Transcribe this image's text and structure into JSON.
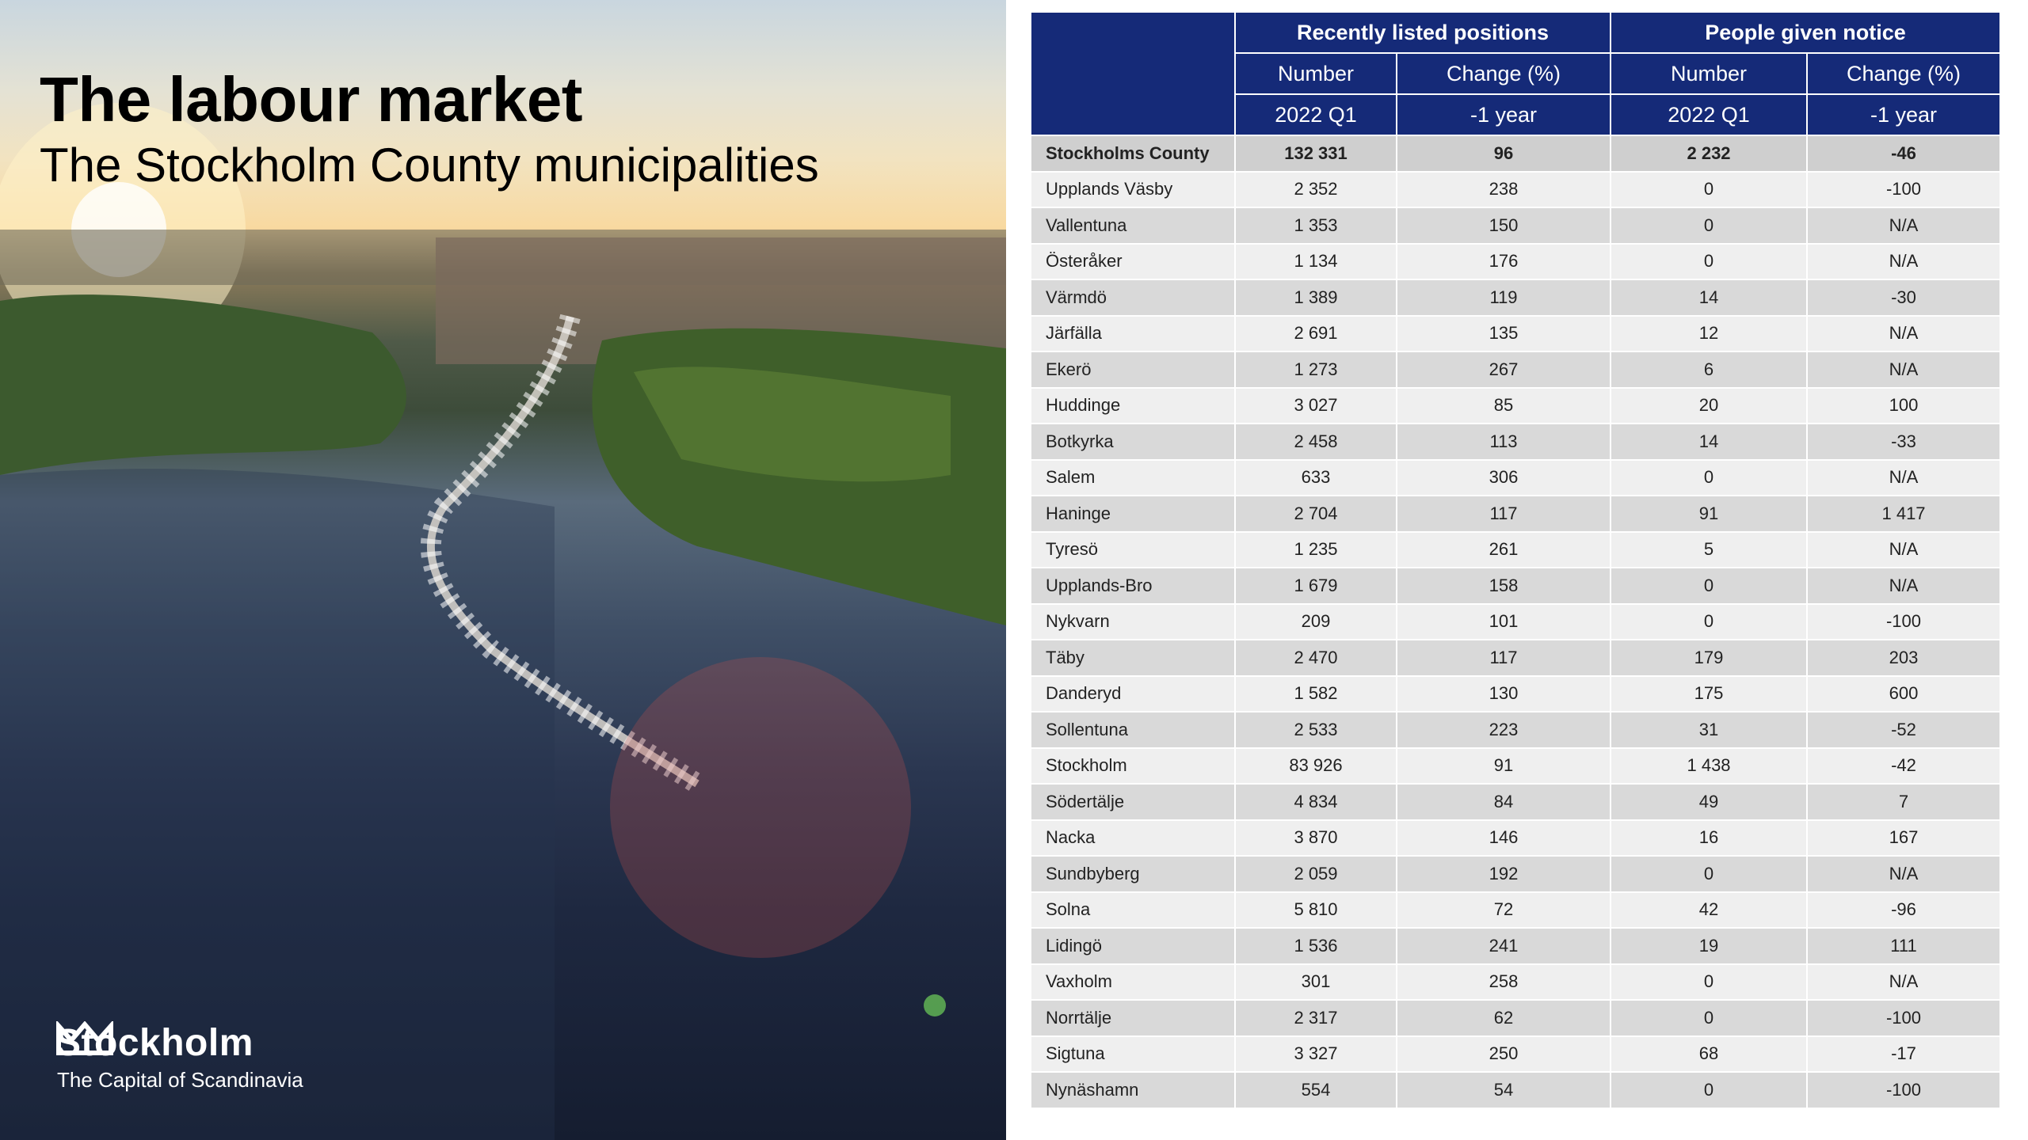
{
  "title": "The labour market",
  "subtitle": "The Stockholm County municipalities",
  "logo": {
    "wordmark": "Stockholm",
    "tagline": "The Capital of Scandinavia",
    "icon": "crown-icon"
  },
  "table": {
    "groups": [
      "Recently listed positions",
      "People given notice"
    ],
    "subheaders": [
      [
        "Number",
        "Change (%)",
        "Number",
        "Change (%)"
      ],
      [
        "2022 Q1",
        "-1 year",
        "2022 Q1",
        "-1 year"
      ]
    ],
    "total": [
      "Stockholms County",
      "132 331",
      "96",
      "2 232",
      "-46"
    ],
    "rows": [
      [
        "Upplands Väsby",
        "2 352",
        "238",
        "0",
        "-100"
      ],
      [
        "Vallentuna",
        "1 353",
        "150",
        "0",
        "N/A"
      ],
      [
        "Österåker",
        "1 134",
        "176",
        "0",
        "N/A"
      ],
      [
        "Värmdö",
        "1 389",
        "119",
        "14",
        "-30"
      ],
      [
        "Järfälla",
        "2 691",
        "135",
        "12",
        "N/A"
      ],
      [
        "Ekerö",
        "1 273",
        "267",
        "6",
        "N/A"
      ],
      [
        "Huddinge",
        "3 027",
        "85",
        "20",
        "100"
      ],
      [
        "Botkyrka",
        "2 458",
        "113",
        "14",
        "-33"
      ],
      [
        "Salem",
        "633",
        "306",
        "0",
        "N/A"
      ],
      [
        "Haninge",
        "2 704",
        "117",
        "91",
        "1 417"
      ],
      [
        "Tyresö",
        "1 235",
        "261",
        "5",
        "N/A"
      ],
      [
        "Upplands-Bro",
        "1 679",
        "158",
        "0",
        "N/A"
      ],
      [
        "Nykvarn",
        "209",
        "101",
        "0",
        "-100"
      ],
      [
        "Täby",
        "2 470",
        "117",
        "179",
        "203"
      ],
      [
        "Danderyd",
        "1 582",
        "130",
        "175",
        "600"
      ],
      [
        "Sollentuna",
        "2 533",
        "223",
        "31",
        "-52"
      ],
      [
        "Stockholm",
        "83 926",
        "91",
        "1 438",
        "-42"
      ],
      [
        "Södertälje",
        "4 834",
        "84",
        "49",
        "7"
      ],
      [
        "Nacka",
        "3 870",
        "146",
        "16",
        "167"
      ],
      [
        "Sundbyberg",
        "2 059",
        "192",
        "0",
        "N/A"
      ],
      [
        "Solna",
        "5 810",
        "72",
        "42",
        "-96"
      ],
      [
        "Lidingö",
        "1 536",
        "241",
        "19",
        "111"
      ],
      [
        "Vaxholm",
        "301",
        "258",
        "0",
        "N/A"
      ],
      [
        "Norrtälje",
        "2 317",
        "62",
        "0",
        "-100"
      ],
      [
        "Sigtuna",
        "3 327",
        "250",
        "68",
        "-17"
      ],
      [
        "Nynäshamn",
        "554",
        "54",
        "0",
        "-100"
      ]
    ]
  },
  "colors": {
    "header": "#152a78",
    "row_odd": "#d9d9d9",
    "row_even": "#efefef"
  }
}
